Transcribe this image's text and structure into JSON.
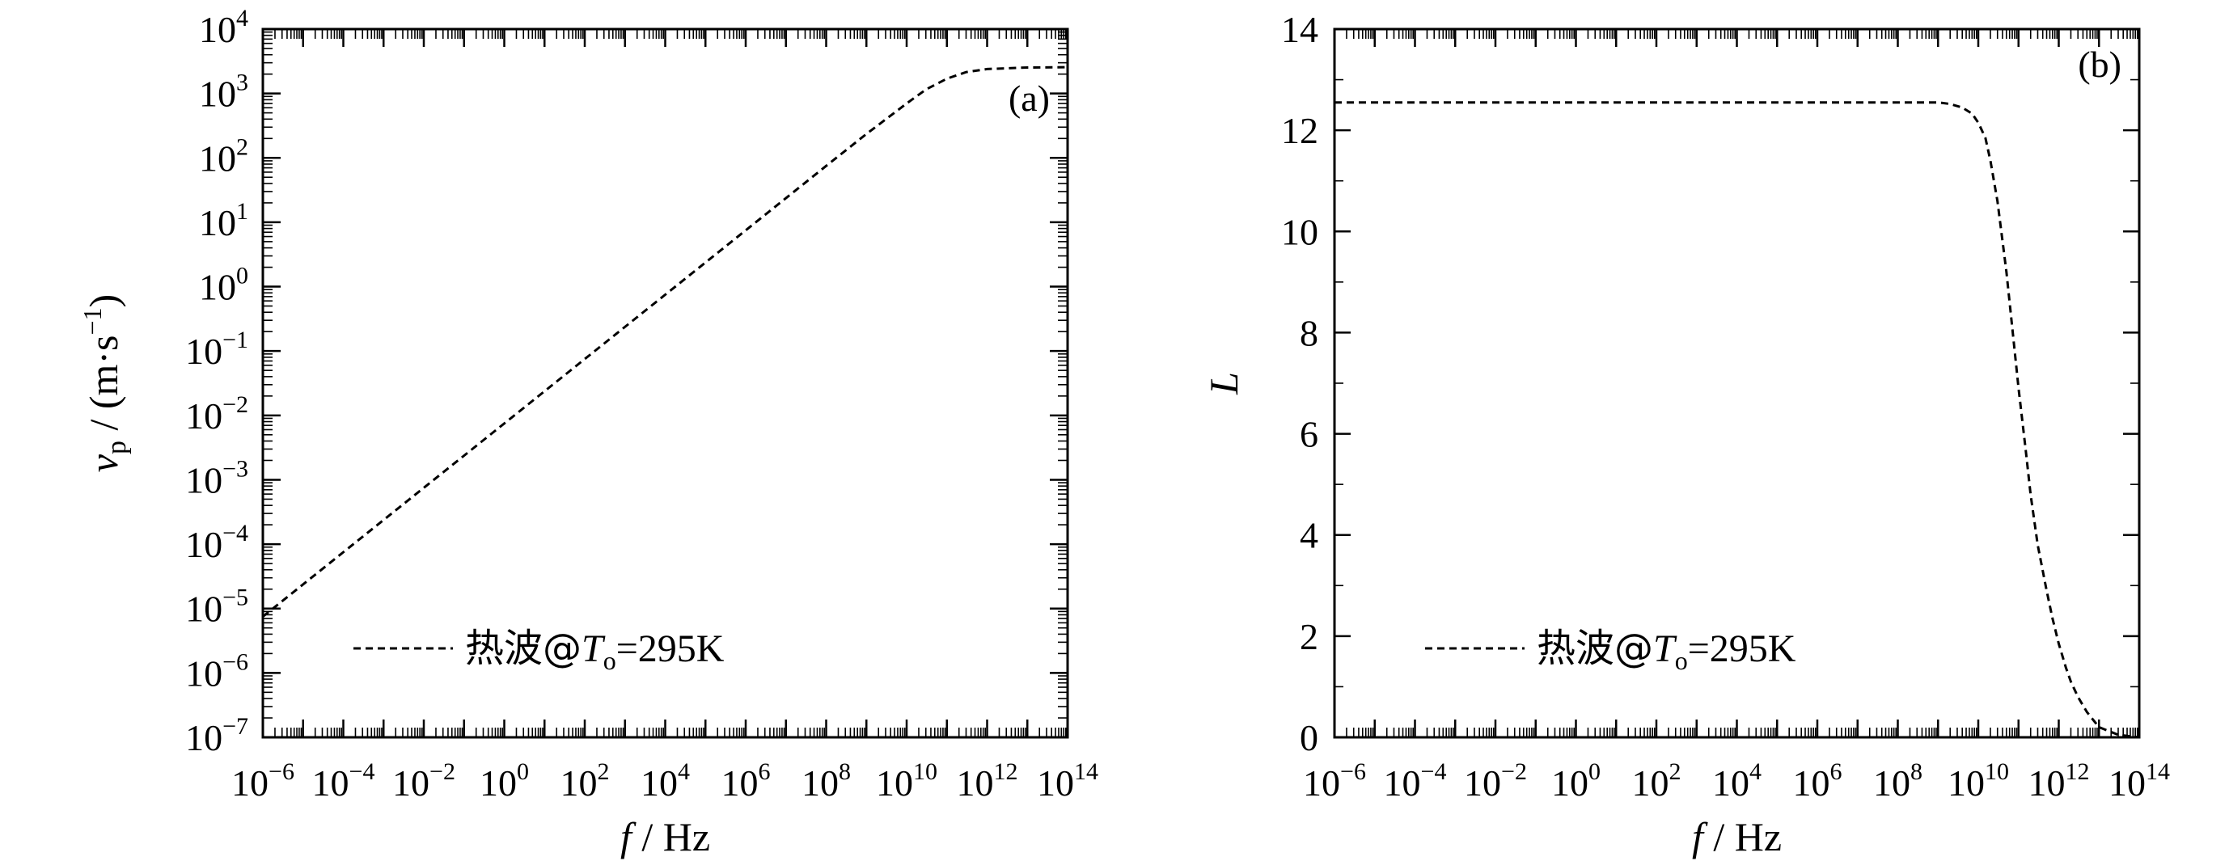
{
  "chart_data": [
    {
      "panel_label": "(a)",
      "type": "line",
      "x_scale": "log",
      "y_scale": "log",
      "xlim": [
        1e-06,
        100000000000000.0
      ],
      "ylim": [
        1e-07,
        10000.0
      ],
      "xlabel": {
        "main": "f",
        "unit": " / Hz"
      },
      "ylabel": {
        "main": "v",
        "sub": "p",
        "rest": " / (m·s",
        "sup": "−1",
        "close": ")"
      },
      "x_ticks": [
        {
          "base": "10",
          "exp": "−6",
          "value": 1e-06
        },
        {
          "base": "10",
          "exp": "−4",
          "value": 0.0001
        },
        {
          "base": "10",
          "exp": "−2",
          "value": 0.01
        },
        {
          "base": "10",
          "exp": "0",
          "value": 1
        },
        {
          "base": "10",
          "exp": "2",
          "value": 100.0
        },
        {
          "base": "10",
          "exp": "4",
          "value": 10000.0
        },
        {
          "base": "10",
          "exp": "6",
          "value": 1000000.0
        },
        {
          "base": "10",
          "exp": "8",
          "value": 100000000.0
        },
        {
          "base": "10",
          "exp": "10",
          "value": 10000000000.0
        },
        {
          "base": "10",
          "exp": "12",
          "value": 1000000000000.0
        },
        {
          "base": "10",
          "exp": "14",
          "value": 100000000000000.0
        }
      ],
      "y_ticks": [
        {
          "base": "10",
          "exp": "−7",
          "value": 1e-07
        },
        {
          "base": "10",
          "exp": "−6",
          "value": 1e-06
        },
        {
          "base": "10",
          "exp": "−5",
          "value": 1e-05
        },
        {
          "base": "10",
          "exp": "−4",
          "value": 0.0001
        },
        {
          "base": "10",
          "exp": "−3",
          "value": 0.001
        },
        {
          "base": "10",
          "exp": "−2",
          "value": 0.01
        },
        {
          "base": "10",
          "exp": "−1",
          "value": 0.1
        },
        {
          "base": "10",
          "exp": "0",
          "value": 1
        },
        {
          "base": "10",
          "exp": "1",
          "value": 10.0
        },
        {
          "base": "10",
          "exp": "2",
          "value": 100.0
        },
        {
          "base": "10",
          "exp": "3",
          "value": 1000.0
        },
        {
          "base": "10",
          "exp": "4",
          "value": 10000.0
        }
      ],
      "legend": {
        "placement": "bottom-left",
        "prefix": "热波@",
        "var": "T",
        "sub": "o",
        "suffix": "=295K"
      },
      "series": [
        {
          "style": "dashed",
          "x": [
            1e-06,
            0.0001,
            0.01,
            1,
            100.0,
            10000.0,
            1000000.0,
            100000000.0,
            1000000000.0,
            10000000000.0,
            30000000000.0,
            100000000000.0,
            300000000000.0,
            1000000000000.0,
            10000000000000.0,
            100000000000000.0
          ],
          "y": [
            7.5e-06,
            7.5e-05,
            0.00075,
            0.0075,
            0.075,
            0.75,
            7.5,
            75,
            235,
            700,
            1150,
            1700,
            2150,
            2400,
            2530,
            2560
          ]
        }
      ]
    },
    {
      "panel_label": "(b)",
      "type": "line",
      "x_scale": "log",
      "y_scale": "linear",
      "xlim": [
        1e-06,
        100000000000000.0
      ],
      "ylim": [
        0,
        14
      ],
      "xlabel": {
        "main": "f",
        "unit": " / Hz"
      },
      "ylabel": {
        "main": "L"
      },
      "x_ticks": [
        {
          "base": "10",
          "exp": "−6",
          "value": 1e-06
        },
        {
          "base": "10",
          "exp": "−4",
          "value": 0.0001
        },
        {
          "base": "10",
          "exp": "−2",
          "value": 0.01
        },
        {
          "base": "10",
          "exp": "0",
          "value": 1
        },
        {
          "base": "10",
          "exp": "2",
          "value": 100.0
        },
        {
          "base": "10",
          "exp": "4",
          "value": 10000.0
        },
        {
          "base": "10",
          "exp": "6",
          "value": 1000000.0
        },
        {
          "base": "10",
          "exp": "8",
          "value": 100000000.0
        },
        {
          "base": "10",
          "exp": "10",
          "value": 10000000000.0
        },
        {
          "base": "10",
          "exp": "12",
          "value": 1000000000000.0
        },
        {
          "base": "10",
          "exp": "14",
          "value": 100000000000000.0
        }
      ],
      "y_ticks": [
        {
          "label": "0",
          "value": 0
        },
        {
          "label": "2",
          "value": 2
        },
        {
          "label": "4",
          "value": 4
        },
        {
          "label": "6",
          "value": 6
        },
        {
          "label": "8",
          "value": 8
        },
        {
          "label": "10",
          "value": 10
        },
        {
          "label": "12",
          "value": 12
        },
        {
          "label": "14",
          "value": 14
        }
      ],
      "legend": {
        "placement": "bottom-left",
        "prefix": "热波@",
        "var": "T",
        "sub": "o",
        "suffix": "=295K"
      },
      "series": [
        {
          "style": "dashed",
          "x": [
            1e-06,
            0.01,
            1,
            10000.0,
            100000000.0,
            1000000000.0,
            2000000000.0,
            4000000000.0,
            7000000000.0,
            10000000000.0,
            15000000000.0,
            20000000000.0,
            30000000000.0,
            50000000000.0,
            70000000000.0,
            100000000000.0,
            150000000000.0,
            200000000000.0,
            300000000000.0,
            500000000000.0,
            700000000000.0,
            1000000000000.0,
            1500000000000.0,
            2000000000000.0,
            3000000000000.0,
            5000000000000.0,
            10000000000000.0,
            30000000000000.0,
            100000000000000.0
          ],
          "y": [
            12.55,
            12.55,
            12.55,
            12.55,
            12.55,
            12.55,
            12.52,
            12.45,
            12.33,
            12.15,
            11.85,
            11.4,
            10.6,
            9.2,
            8.1,
            6.9,
            5.7,
            4.8,
            3.8,
            2.9,
            2.35,
            1.85,
            1.38,
            1.1,
            0.8,
            0.5,
            0.2,
            0.05,
            0.0
          ]
        }
      ]
    }
  ]
}
